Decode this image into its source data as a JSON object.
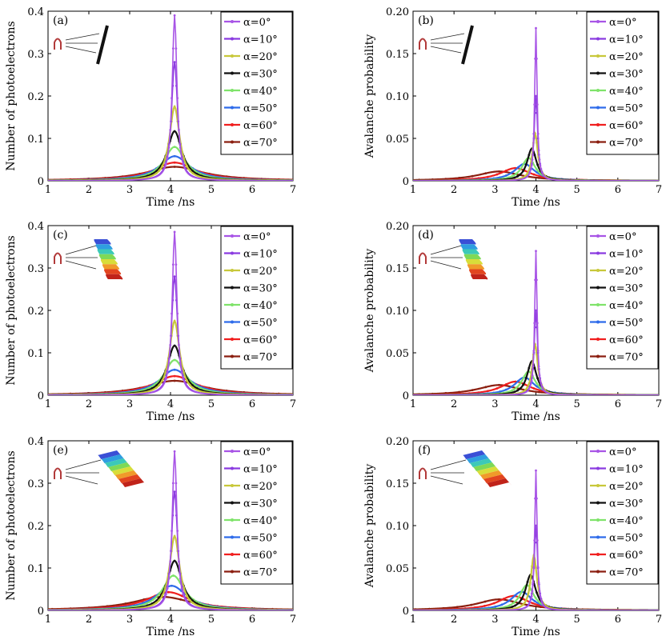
{
  "colors": {
    "a0": "#a855e6",
    "a10": "#8a3be0",
    "a20": "#c8c83a",
    "a30": "#111111",
    "a40": "#7fe36a",
    "a50": "#2e6bea",
    "a60": "#f01f1f",
    "a70": "#8b1f10"
  },
  "icons": [
    "detector-flat-icon",
    "detector-curved-small-icon",
    "detector-curved-large-icon"
  ],
  "chart_data": [
    {
      "type": "line",
      "panel": "(a)",
      "icon": "flat",
      "xlabel": "Time /ns",
      "ylabel": "Number of photoelectrons",
      "xlim": [
        1,
        7
      ],
      "ylim": [
        0,
        0.4
      ],
      "xticks": [
        1,
        2,
        3,
        4,
        5,
        6,
        7
      ],
      "xtick_labels": [
        "1",
        "2",
        "3",
        "4",
        "5",
        "6",
        "7"
      ],
      "yticks": [
        0,
        0.1,
        0.2,
        0.3,
        0.4
      ],
      "ytick_labels": [
        "0",
        "0.1",
        "0.2",
        "0.3",
        "0.4"
      ],
      "legend": "top-right",
      "grid": false,
      "series": [
        {
          "name": "α=0°",
          "color_key": "a0",
          "peak_t": 4.1,
          "peak": 0.39,
          "width": 0.07
        },
        {
          "name": "α=10°",
          "color_key": "a10",
          "peak_t": 4.1,
          "peak": 0.28,
          "width": 0.09
        },
        {
          "name": "α=20°",
          "color_key": "a20",
          "peak_t": 4.1,
          "peak": 0.175,
          "width": 0.15
        },
        {
          "name": "α=30°",
          "color_key": "a30",
          "peak_t": 4.1,
          "peak": 0.117,
          "width": 0.22
        },
        {
          "name": "α=40°",
          "color_key": "a40",
          "peak_t": 4.1,
          "peak": 0.08,
          "width": 0.32
        },
        {
          "name": "α=50°",
          "color_key": "a50",
          "peak_t": 4.1,
          "peak": 0.058,
          "width": 0.45
        },
        {
          "name": "α=60°",
          "color_key": "a60",
          "peak_t": 4.1,
          "peak": 0.043,
          "width": 0.62
        },
        {
          "name": "α=70°",
          "color_key": "a70",
          "peak_t": 4.1,
          "peak": 0.033,
          "width": 0.85
        }
      ]
    },
    {
      "type": "line",
      "panel": "(b)",
      "icon": "flat",
      "xlabel": "Time /ns",
      "ylabel": "Avalanche probability",
      "xlim": [
        1,
        7
      ],
      "ylim": [
        0,
        0.2
      ],
      "xticks": [
        1,
        2,
        3,
        4,
        5,
        6,
        7
      ],
      "xtick_labels": [
        "1",
        "2",
        "3",
        "4",
        "5",
        "6",
        "7"
      ],
      "yticks": [
        0,
        0.05,
        0.1,
        0.15,
        0.2
      ],
      "ytick_labels": [
        "0",
        "0.05",
        "0.10",
        "0.15",
        "0.20"
      ],
      "legend": "top-right",
      "grid": false,
      "series": [
        {
          "name": "α=0°",
          "color_key": "a0",
          "peak_t": 4.0,
          "peak": 0.18,
          "width": 0.035
        },
        {
          "name": "α=10°",
          "color_key": "a10",
          "peak_t": 4.0,
          "peak": 0.1,
          "width": 0.05
        },
        {
          "name": "α=20°",
          "color_key": "a20",
          "peak_t": 3.98,
          "peak": 0.056,
          "width": 0.08
        },
        {
          "name": "α=30°",
          "color_key": "a30",
          "peak_t": 3.9,
          "peak": 0.038,
          "width": 0.14
        },
        {
          "name": "α=40°",
          "color_key": "a40",
          "peak_t": 3.82,
          "peak": 0.027,
          "width": 0.2
        },
        {
          "name": "α=50°",
          "color_key": "a50",
          "peak_t": 3.72,
          "peak": 0.02,
          "width": 0.3
        },
        {
          "name": "α=60°",
          "color_key": "a60",
          "peak_t": 3.5,
          "peak": 0.015,
          "width": 0.45
        },
        {
          "name": "α=70°",
          "color_key": "a70",
          "peak_t": 3.1,
          "peak": 0.011,
          "width": 0.65
        }
      ]
    },
    {
      "type": "line",
      "panel": "(c)",
      "icon": "curved-small",
      "xlabel": "Time /ns",
      "ylabel": "Number of photoelectrons",
      "xlim": [
        1,
        7
      ],
      "ylim": [
        0,
        0.4
      ],
      "xticks": [
        1,
        2,
        3,
        4,
        5,
        6,
        7
      ],
      "xtick_labels": [
        "1",
        "2",
        "3",
        "4",
        "5",
        "6",
        "7"
      ],
      "yticks": [
        0,
        0.1,
        0.2,
        0.3,
        0.4
      ],
      "ytick_labels": [
        "0",
        "0.1",
        "0.2",
        "0.3",
        "0.4"
      ],
      "legend": "top-right",
      "grid": false,
      "series": [
        {
          "name": "α=0°",
          "color_key": "a0",
          "peak_t": 4.1,
          "peak": 0.385,
          "width": 0.07
        },
        {
          "name": "α=10°",
          "color_key": "a10",
          "peak_t": 4.1,
          "peak": 0.28,
          "width": 0.09
        },
        {
          "name": "α=20°",
          "color_key": "a20",
          "peak_t": 4.1,
          "peak": 0.175,
          "width": 0.15
        },
        {
          "name": "α=30°",
          "color_key": "a30",
          "peak_t": 4.1,
          "peak": 0.117,
          "width": 0.22
        },
        {
          "name": "α=40°",
          "color_key": "a40",
          "peak_t": 4.1,
          "peak": 0.083,
          "width": 0.32
        },
        {
          "name": "α=50°",
          "color_key": "a50",
          "peak_t": 4.1,
          "peak": 0.06,
          "width": 0.45
        },
        {
          "name": "α=60°",
          "color_key": "a60",
          "peak_t": 4.1,
          "peak": 0.045,
          "width": 0.62
        },
        {
          "name": "α=70°",
          "color_key": "a70",
          "peak_t": 4.1,
          "peak": 0.034,
          "width": 0.85
        }
      ]
    },
    {
      "type": "line",
      "panel": "(d)",
      "icon": "curved-small",
      "xlabel": "Time /ns",
      "ylabel": "Avalanche probability",
      "xlim": [
        1,
        7
      ],
      "ylim": [
        0,
        0.2
      ],
      "xticks": [
        1,
        2,
        3,
        4,
        5,
        6,
        7
      ],
      "xtick_labels": [
        "1",
        "2",
        "3",
        "4",
        "5",
        "6",
        "7"
      ],
      "yticks": [
        0,
        0.05,
        0.1,
        0.15,
        0.2
      ],
      "ytick_labels": [
        "0",
        "0.05",
        "0.10",
        "0.15",
        "0.20"
      ],
      "legend": "top-right",
      "grid": false,
      "series": [
        {
          "name": "α=0°",
          "color_key": "a0",
          "peak_t": 4.0,
          "peak": 0.17,
          "width": 0.035
        },
        {
          "name": "α=10°",
          "color_key": "a10",
          "peak_t": 4.0,
          "peak": 0.1,
          "width": 0.05
        },
        {
          "name": "α=20°",
          "color_key": "a20",
          "peak_t": 3.98,
          "peak": 0.06,
          "width": 0.08
        },
        {
          "name": "α=30°",
          "color_key": "a30",
          "peak_t": 3.9,
          "peak": 0.04,
          "width": 0.14
        },
        {
          "name": "α=40°",
          "color_key": "a40",
          "peak_t": 3.82,
          "peak": 0.028,
          "width": 0.2
        },
        {
          "name": "α=50°",
          "color_key": "a50",
          "peak_t": 3.72,
          "peak": 0.021,
          "width": 0.3
        },
        {
          "name": "α=60°",
          "color_key": "a60",
          "peak_t": 3.5,
          "peak": 0.016,
          "width": 0.45
        },
        {
          "name": "α=70°",
          "color_key": "a70",
          "peak_t": 3.1,
          "peak": 0.012,
          "width": 0.65
        }
      ]
    },
    {
      "type": "line",
      "panel": "(e)",
      "icon": "curved-large",
      "xlabel": "Time /ns",
      "ylabel": "Number of photoelectrons",
      "xlim": [
        1,
        7
      ],
      "ylim": [
        0,
        0.4
      ],
      "xticks": [
        1,
        2,
        3,
        4,
        5,
        6,
        7
      ],
      "xtick_labels": [
        "1",
        "2",
        "3",
        "4",
        "5",
        "6",
        "7"
      ],
      "yticks": [
        0,
        0.1,
        0.2,
        0.3,
        0.4
      ],
      "ytick_labels": [
        "0",
        "0.1",
        "0.2",
        "0.3",
        "0.4"
      ],
      "legend": "top-right",
      "grid": false,
      "series": [
        {
          "name": "α=0°",
          "color_key": "a0",
          "peak_t": 4.1,
          "peak": 0.375,
          "width": 0.07
        },
        {
          "name": "α=10°",
          "color_key": "a10",
          "peak_t": 4.1,
          "peak": 0.28,
          "width": 0.09
        },
        {
          "name": "α=20°",
          "color_key": "a20",
          "peak_t": 4.1,
          "peak": 0.175,
          "width": 0.15
        },
        {
          "name": "α=30°",
          "color_key": "a30",
          "peak_t": 4.1,
          "peak": 0.117,
          "width": 0.22
        },
        {
          "name": "α=40°",
          "color_key": "a40",
          "peak_t": 4.07,
          "peak": 0.082,
          "width": 0.33
        },
        {
          "name": "α=50°",
          "color_key": "a50",
          "peak_t": 4.03,
          "peak": 0.058,
          "width": 0.46
        },
        {
          "name": "α=60°",
          "color_key": "a60",
          "peak_t": 3.95,
          "peak": 0.043,
          "width": 0.65
        },
        {
          "name": "α=70°",
          "color_key": "a70",
          "peak_t": 3.8,
          "peak": 0.032,
          "width": 0.9
        }
      ]
    },
    {
      "type": "line",
      "panel": "(f)",
      "icon": "curved-large",
      "xlabel": "Time /ns",
      "ylabel": "Avalanche probability",
      "xlim": [
        1,
        7
      ],
      "ylim": [
        0,
        0.2
      ],
      "xticks": [
        1,
        2,
        3,
        4,
        5,
        6,
        7
      ],
      "xtick_labels": [
        "1",
        "2",
        "3",
        "4",
        "5",
        "6",
        "7"
      ],
      "yticks": [
        0,
        0.05,
        0.1,
        0.15,
        0.2
      ],
      "ytick_labels": [
        "0",
        "0.05",
        "0.10",
        "0.15",
        "0.20"
      ],
      "legend": "top-right",
      "grid": false,
      "series": [
        {
          "name": "α=0°",
          "color_key": "a0",
          "peak_t": 4.0,
          "peak": 0.165,
          "width": 0.035
        },
        {
          "name": "α=10°",
          "color_key": "a10",
          "peak_t": 4.0,
          "peak": 0.1,
          "width": 0.05
        },
        {
          "name": "α=20°",
          "color_key": "a20",
          "peak_t": 3.95,
          "peak": 0.065,
          "width": 0.09
        },
        {
          "name": "α=30°",
          "color_key": "a30",
          "peak_t": 3.87,
          "peak": 0.042,
          "width": 0.15
        },
        {
          "name": "α=40°",
          "color_key": "a40",
          "peak_t": 3.78,
          "peak": 0.03,
          "width": 0.21
        },
        {
          "name": "α=50°",
          "color_key": "a50",
          "peak_t": 3.65,
          "peak": 0.022,
          "width": 0.32
        },
        {
          "name": "α=60°",
          "color_key": "a60",
          "peak_t": 3.45,
          "peak": 0.017,
          "width": 0.47
        },
        {
          "name": "α=70°",
          "color_key": "a70",
          "peak_t": 3.1,
          "peak": 0.013,
          "width": 0.68
        }
      ]
    }
  ]
}
